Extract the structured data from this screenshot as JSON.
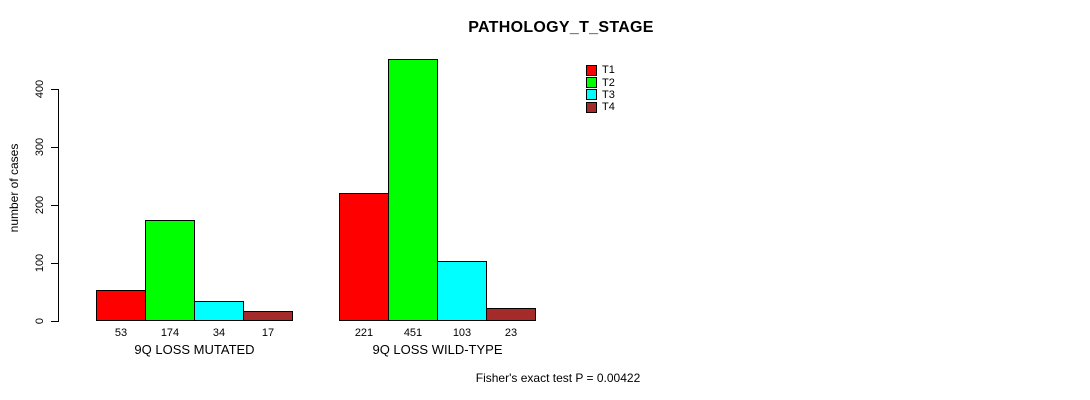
{
  "chart_data": {
    "type": "bar",
    "title": "PATHOLOGY_T_STAGE",
    "ylabel": "number of cases",
    "xlabel": "",
    "categories": [
      "9Q LOSS MUTATED",
      "9Q LOSS WILD-TYPE"
    ],
    "series": [
      {
        "name": "T1",
        "color": "#ff0000",
        "values": [
          53,
          221
        ]
      },
      {
        "name": "T2",
        "color": "#00ff00",
        "values": [
          174,
          451
        ]
      },
      {
        "name": "T3",
        "color": "#00ffff",
        "values": [
          34,
          103
        ]
      },
      {
        "name": "T4",
        "color": "#a52a2a",
        "values": [
          17,
          23
        ]
      }
    ],
    "yticks": [
      0,
      100,
      200,
      300,
      400
    ],
    "ylim": [
      0,
      400
    ],
    "grid": false,
    "legend_position": "top-right",
    "bar_value_labels_shown": true,
    "annotation": "Fisher's exact test P = 0.00422"
  }
}
